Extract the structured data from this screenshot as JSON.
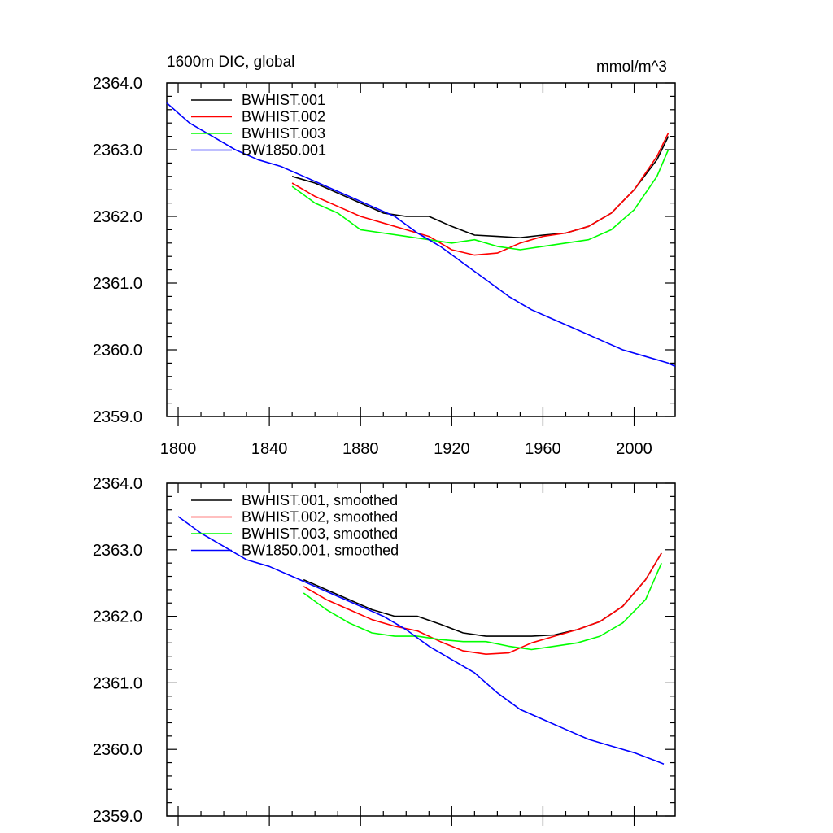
{
  "chart_data": [
    {
      "type": "line",
      "title": "1600m DIC, global",
      "units": "mmol/m^3",
      "xlim": [
        1795,
        2018
      ],
      "ylim": [
        2359.0,
        2364.0
      ],
      "xticks": [
        1800,
        1840,
        1880,
        1920,
        1960,
        2000
      ],
      "xtick_labels": [
        "1800",
        "1840",
        "1880",
        "1920",
        "1960",
        "2000"
      ],
      "yticks": [
        2359.0,
        2360.0,
        2361.0,
        2362.0,
        2363.0,
        2364.0
      ],
      "ytick_labels": [
        "2359.0",
        "2360.0",
        "2361.0",
        "2362.0",
        "2363.0",
        "2364.0"
      ],
      "legend_position": "top-left",
      "series": [
        {
          "name": "BWHIST.001",
          "color": "#000000",
          "x": [
            1850,
            1860,
            1870,
            1880,
            1890,
            1900,
            1910,
            1920,
            1930,
            1940,
            1950,
            1960,
            1970,
            1980,
            1990,
            2000,
            2010,
            2015
          ],
          "y": [
            2362.6,
            2362.5,
            2362.35,
            2362.2,
            2362.05,
            2362.0,
            2362.0,
            2361.85,
            2361.72,
            2361.7,
            2361.68,
            2361.72,
            2361.75,
            2361.85,
            2362.05,
            2362.4,
            2362.85,
            2363.2
          ]
        },
        {
          "name": "BWHIST.002",
          "color": "#ff0000",
          "x": [
            1850,
            1860,
            1870,
            1880,
            1890,
            1900,
            1910,
            1920,
            1930,
            1940,
            1950,
            1960,
            1970,
            1980,
            1990,
            2000,
            2010,
            2015
          ],
          "y": [
            2362.5,
            2362.3,
            2362.15,
            2362.0,
            2361.9,
            2361.8,
            2361.7,
            2361.5,
            2361.42,
            2361.45,
            2361.6,
            2361.7,
            2361.75,
            2361.85,
            2362.05,
            2362.4,
            2362.9,
            2363.25
          ]
        },
        {
          "name": "BWHIST.003",
          "color": "#00ff00",
          "x": [
            1850,
            1860,
            1870,
            1880,
            1890,
            1900,
            1910,
            1920,
            1930,
            1940,
            1950,
            1960,
            1970,
            1980,
            1990,
            2000,
            2010,
            2015
          ],
          "y": [
            2362.45,
            2362.2,
            2362.05,
            2361.8,
            2361.75,
            2361.7,
            2361.65,
            2361.6,
            2361.65,
            2361.55,
            2361.5,
            2361.55,
            2361.6,
            2361.65,
            2361.8,
            2362.1,
            2362.6,
            2363.0
          ]
        },
        {
          "name": "BW1850.001",
          "color": "#0000ff",
          "x": [
            1795,
            1805,
            1815,
            1825,
            1835,
            1845,
            1855,
            1865,
            1875,
            1885,
            1895,
            1905,
            1915,
            1925,
            1935,
            1945,
            1955,
            1965,
            1975,
            1985,
            1995,
            2005,
            2015,
            2018
          ],
          "y": [
            2363.7,
            2363.4,
            2363.2,
            2363.0,
            2362.85,
            2362.75,
            2362.6,
            2362.45,
            2362.3,
            2362.15,
            2362.0,
            2361.75,
            2361.55,
            2361.3,
            2361.05,
            2360.8,
            2360.6,
            2360.45,
            2360.3,
            2360.15,
            2360.0,
            2359.9,
            2359.8,
            2359.75
          ]
        }
      ]
    },
    {
      "type": "line",
      "title": "",
      "xlim": [
        1795,
        2018
      ],
      "ylim": [
        2359.0,
        2364.0
      ],
      "xticks": [
        1800,
        1840,
        1880,
        1920,
        1960,
        2000
      ],
      "yticks": [
        2359.0,
        2360.0,
        2361.0,
        2362.0,
        2363.0,
        2364.0
      ],
      "ytick_labels": [
        "2359.0",
        "2360.0",
        "2361.0",
        "2362.0",
        "2363.0",
        "2364.0"
      ],
      "legend_position": "top-left",
      "series": [
        {
          "name": "BWHIST.001, smoothed",
          "color": "#000000",
          "x": [
            1855,
            1865,
            1875,
            1885,
            1895,
            1905,
            1915,
            1925,
            1935,
            1945,
            1955,
            1965,
            1975,
            1985,
            1995,
            2005,
            2012
          ],
          "y": [
            2362.55,
            2362.4,
            2362.25,
            2362.1,
            2362.0,
            2362.0,
            2361.88,
            2361.75,
            2361.7,
            2361.7,
            2361.7,
            2361.72,
            2361.8,
            2361.92,
            2362.15,
            2362.55,
            2362.95
          ]
        },
        {
          "name": "BWHIST.002, smoothed",
          "color": "#ff0000",
          "x": [
            1855,
            1865,
            1875,
            1885,
            1895,
            1905,
            1915,
            1925,
            1935,
            1945,
            1955,
            1965,
            1975,
            1985,
            1995,
            2005,
            2012
          ],
          "y": [
            2362.45,
            2362.25,
            2362.1,
            2361.95,
            2361.85,
            2361.78,
            2361.62,
            2361.48,
            2361.43,
            2361.45,
            2361.6,
            2361.7,
            2361.8,
            2361.92,
            2362.15,
            2362.55,
            2362.95
          ]
        },
        {
          "name": "BWHIST.003, smoothed",
          "color": "#00ff00",
          "x": [
            1855,
            1865,
            1875,
            1885,
            1895,
            1905,
            1915,
            1925,
            1935,
            1945,
            1955,
            1965,
            1975,
            1985,
            1995,
            2005,
            2012
          ],
          "y": [
            2362.35,
            2362.1,
            2361.9,
            2361.75,
            2361.7,
            2361.7,
            2361.65,
            2361.62,
            2361.62,
            2361.55,
            2361.5,
            2361.55,
            2361.6,
            2361.7,
            2361.9,
            2362.25,
            2362.8
          ]
        },
        {
          "name": "BW1850.001, smoothed",
          "color": "#0000ff",
          "x": [
            1800,
            1810,
            1820,
            1830,
            1840,
            1850,
            1860,
            1870,
            1880,
            1890,
            1900,
            1910,
            1920,
            1930,
            1940,
            1950,
            1960,
            1970,
            1980,
            1990,
            2000,
            2010,
            2013
          ],
          "y": [
            2363.5,
            2363.25,
            2363.05,
            2362.85,
            2362.75,
            2362.6,
            2362.45,
            2362.3,
            2362.15,
            2362.0,
            2361.8,
            2361.55,
            2361.35,
            2361.15,
            2360.85,
            2360.6,
            2360.45,
            2360.3,
            2360.15,
            2360.05,
            2359.95,
            2359.82,
            2359.78
          ]
        }
      ]
    }
  ]
}
